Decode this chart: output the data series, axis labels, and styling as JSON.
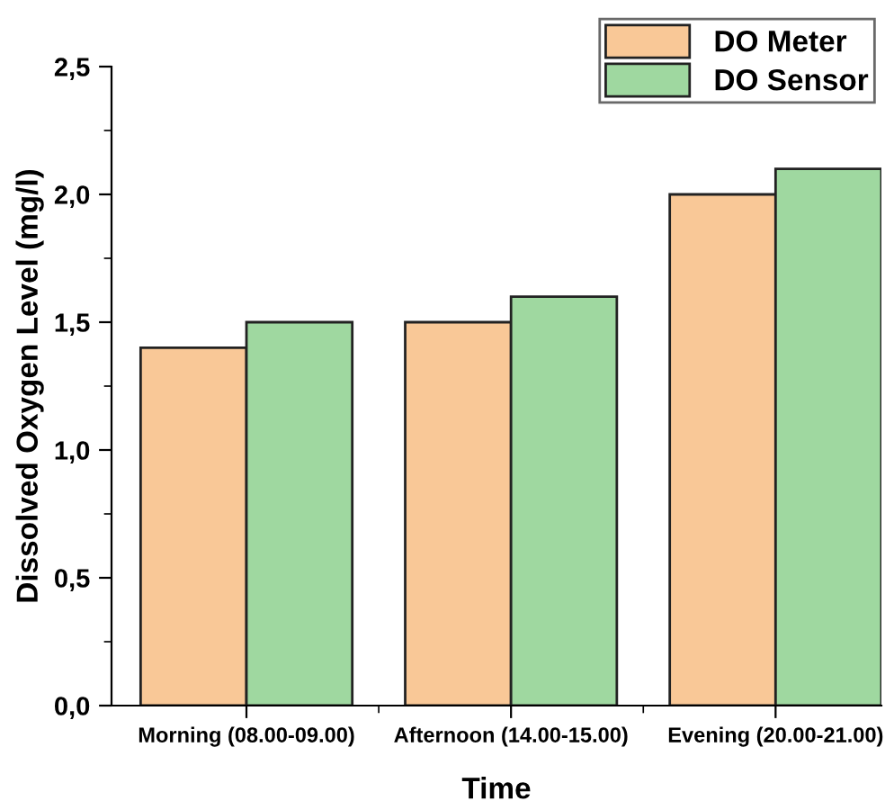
{
  "chart_data": {
    "type": "bar",
    "xlabel": "Time",
    "ylabel": "Dissolved Oxygen Level (mg/l)",
    "categories": [
      "Morning (08.00-09.00)",
      "Afternoon (14.00-15.00)",
      "Evening (20.00-21.00)"
    ],
    "series": [
      {
        "name": "DO Meter",
        "color": "#f9c897",
        "values": [
          1.4,
          1.5,
          2.0
        ]
      },
      {
        "name": "DO Sensor",
        "color": "#9fd8a0",
        "values": [
          1.5,
          1.6,
          2.1
        ]
      }
    ],
    "ylim": [
      0,
      2.5
    ],
    "yticks": [
      {
        "value": 0,
        "label": "0,0"
      },
      {
        "value": 0.5,
        "label": "0,5"
      },
      {
        "value": 1.0,
        "label": "1,0"
      },
      {
        "value": 1.5,
        "label": "1,5"
      },
      {
        "value": 2.0,
        "label": "2,0"
      },
      {
        "value": 2.5,
        "label": "2,5"
      }
    ],
    "grid": false,
    "legend": "top right"
  }
}
